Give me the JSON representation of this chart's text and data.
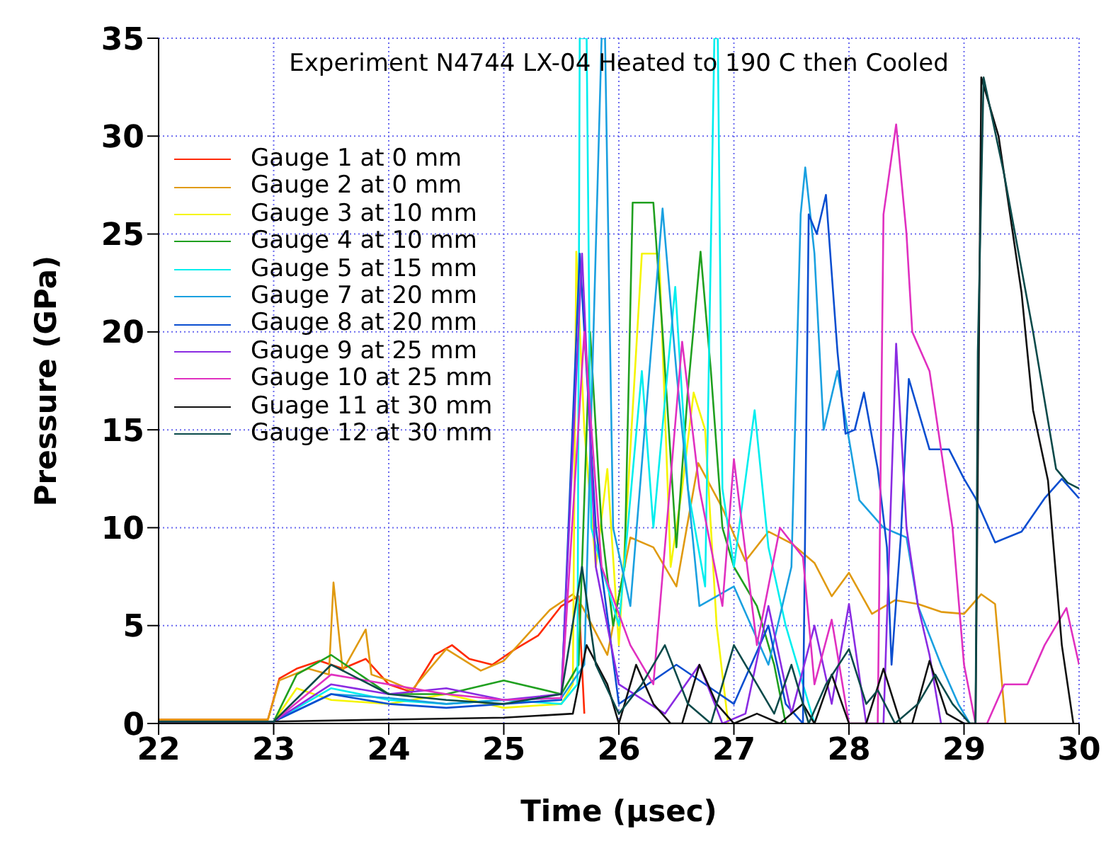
{
  "chart_data": {
    "type": "line",
    "title": "Experiment N4744 LX-04 Heated to 190 C then Cooled",
    "xlabel": "Time (μsec)",
    "ylabel": "Pressure (GPa)",
    "xlim": [
      22,
      30
    ],
    "ylim": [
      0,
      35
    ],
    "xticks": [
      22,
      23,
      24,
      25,
      26,
      27,
      28,
      29,
      30
    ],
    "yticks": [
      0,
      5,
      10,
      15,
      20,
      25,
      30,
      35
    ],
    "grid": true,
    "legend": "top left",
    "marker": "none",
    "line_style": "solid",
    "series": [
      {
        "name": "Gauge 1 at 0 mm",
        "color": "#ff2a00",
        "x": [
          22,
          22.5,
          22.95,
          23.05,
          23.2,
          23.4,
          23.6,
          23.8,
          24.0,
          24.2,
          24.4,
          24.55,
          24.7,
          24.9,
          25.1,
          25.3,
          25.5,
          25.65,
          25.7
        ],
        "values": [
          0.2,
          0.2,
          0.2,
          2.3,
          2.8,
          3.2,
          2.8,
          3.3,
          2.0,
          1.6,
          3.5,
          4,
          3.3,
          3,
          3.8,
          4.5,
          6,
          6.5,
          0.5
        ]
      },
      {
        "name": "Gauge 2 at 0 mm",
        "color": "#e09a10",
        "x": [
          22,
          22.5,
          22.95,
          23.05,
          23.3,
          23.48,
          23.52,
          23.6,
          23.8,
          23.85,
          24.0,
          24.2,
          24.5,
          24.8,
          25.0,
          25.2,
          25.4,
          25.6,
          25.68,
          25.9,
          26.1,
          26.3,
          26.5,
          26.69,
          26.9,
          27.1,
          27.3,
          27.5,
          27.7,
          27.85,
          28.0,
          28.2,
          28.4,
          28.6,
          28.8,
          29.0,
          29.15,
          29.27,
          29.36
        ],
        "values": [
          0.2,
          0.2,
          0.2,
          2.2,
          2.8,
          2.5,
          7.2,
          2.7,
          4.8,
          2.5,
          2.2,
          1.7,
          3.8,
          2.7,
          3.2,
          4.5,
          5.8,
          6.6,
          6,
          3.5,
          9.5,
          9,
          7,
          13.3,
          11,
          8.3,
          9.8,
          9.2,
          8.2,
          6.5,
          7.7,
          5.6,
          6.3,
          6.1,
          5.7,
          5.6,
          6.6,
          6.1,
          0
        ]
      },
      {
        "name": "Gauge 3 at 10 mm",
        "color": "#f5f500",
        "x": [
          22,
          23.0,
          23.2,
          23.5,
          24.0,
          24.5,
          25.0,
          25.5,
          25.6,
          25.63,
          25.7,
          25.8,
          25.9,
          26.0,
          26.2,
          26.35,
          26.45,
          26.55,
          26.65,
          26.75,
          26.85,
          26.95
        ],
        "values": [
          0.1,
          0.1,
          1.8,
          1.2,
          1.0,
          1.5,
          0.8,
          1.0,
          2,
          24.1,
          15,
          8,
          13,
          4,
          24,
          24,
          8,
          12,
          16.9,
          15,
          5,
          0
        ]
      },
      {
        "name": "Gauge 4 at 10 mm",
        "color": "#20a020",
        "x": [
          22,
          23.0,
          23.2,
          23.5,
          24.0,
          24.5,
          25.0,
          25.5,
          25.65,
          25.75,
          25.85,
          25.95,
          26.05,
          26.12,
          26.3,
          26.38,
          26.5,
          26.6,
          26.71,
          26.8,
          26.9,
          27.0,
          27.2,
          27.35,
          27.45
        ],
        "values": [
          0.1,
          0.1,
          2.5,
          3.5,
          1.5,
          1.5,
          2.2,
          1.5,
          3,
          20,
          10,
          5,
          8,
          26.6,
          26.6,
          20,
          9,
          17,
          24.1,
          18,
          10,
          8,
          6,
          3,
          0
        ]
      },
      {
        "name": "Gauge 5 at 15 mm",
        "color": "#00eeee",
        "x": [
          22,
          23.0,
          23.5,
          24.0,
          24.5,
          25.0,
          25.5,
          25.64,
          25.66,
          25.72,
          25.76,
          25.85,
          26.0,
          26.2,
          26.3,
          26.49,
          26.6,
          26.75,
          26.83,
          26.86,
          26.9,
          27.0,
          27.18,
          27.3,
          27.45,
          27.6,
          27.7
        ],
        "values": [
          0.1,
          0.1,
          1.8,
          1.2,
          1.0,
          1.2,
          1.0,
          2,
          35,
          35,
          10,
          8,
          5,
          18,
          10,
          22.3,
          12,
          7,
          35,
          35,
          12,
          8,
          16,
          9,
          5,
          2,
          0
        ]
      },
      {
        "name": "Gauge 7 at 20 mm",
        "color": "#1aa0e0",
        "x": [
          22,
          23.0,
          23.5,
          24.0,
          24.5,
          25.0,
          25.5,
          25.7,
          25.85,
          25.88,
          25.95,
          26.1,
          26.38,
          26.5,
          26.7,
          27.0,
          27.3,
          27.5,
          27.58,
          27.62,
          27.7,
          27.78,
          27.9,
          28.09,
          28.3,
          28.5,
          28.6,
          28.8,
          28.95,
          29.05
        ],
        "values": [
          0.1,
          0.1,
          1.5,
          1.3,
          1.0,
          1.2,
          1.3,
          3,
          35,
          35,
          10,
          6,
          26.3,
          18,
          6,
          7,
          3,
          8,
          26,
          28.4,
          24,
          15,
          18,
          11.4,
          10,
          9.5,
          6,
          3,
          1,
          0
        ]
      },
      {
        "name": "Gauge 8 at 20 mm",
        "color": "#0a4ed0",
        "x": [
          22,
          23.0,
          23.5,
          24.0,
          24.5,
          25.0,
          25.5,
          25.66,
          25.8,
          26.0,
          26.5,
          27.0,
          27.3,
          27.45,
          27.6,
          27.65,
          27.72,
          27.8,
          27.9,
          27.97,
          28.05,
          28.13,
          28.25,
          28.33,
          28.37,
          28.45,
          28.52,
          28.6,
          28.7,
          28.87,
          29.0,
          29.1,
          29.27,
          29.5,
          29.7,
          29.85,
          30.0
        ],
        "values": [
          0.1,
          0.1,
          1.5,
          1.0,
          0.8,
          1.0,
          1.2,
          24,
          10,
          1,
          3,
          1,
          5,
          1,
          0,
          26,
          25,
          27,
          19,
          14.8,
          15,
          16.9,
          13,
          9,
          3,
          9.5,
          17.6,
          16,
          14,
          14,
          12.5,
          11.5,
          9.25,
          9.8,
          11.5,
          12.5,
          11.5
        ]
      },
      {
        "name": "Gauge 9 at 25 mm",
        "color": "#8a2be2",
        "x": [
          22,
          23.0,
          23.5,
          24.0,
          24.5,
          25.0,
          25.5,
          25.68,
          25.8,
          26.0,
          26.4,
          26.7,
          26.9,
          27.1,
          27.3,
          27.5,
          27.7,
          27.85,
          28.0,
          28.15,
          28.3,
          28.41,
          28.5,
          28.6,
          28.7,
          28.8
        ],
        "values": [
          0.1,
          0.1,
          2,
          1.5,
          1.8,
          1.2,
          1.5,
          24,
          8,
          2,
          0.5,
          3,
          0,
          0.5,
          6,
          0.5,
          5,
          1,
          6.1,
          0,
          0,
          19.4,
          10,
          6,
          3.5,
          0
        ]
      },
      {
        "name": "Gauge 10 at 25 mm",
        "color": "#e030c0",
        "x": [
          22,
          23.0,
          23.5,
          24.0,
          24.5,
          25.0,
          25.5,
          25.7,
          25.85,
          26.1,
          26.3,
          26.55,
          26.7,
          26.9,
          27.0,
          27.2,
          27.4,
          27.6,
          27.7,
          27.85,
          28.0,
          28.25,
          28.3,
          28.41,
          28.5,
          28.55,
          28.7,
          28.9,
          29.0,
          29.1,
          29.2,
          29.35,
          29.55,
          29.7,
          29.89,
          30.0
        ],
        "values": [
          0.1,
          0.1,
          2.5,
          2,
          1.5,
          1.2,
          1.3,
          20,
          8,
          4,
          2,
          19.5,
          12,
          6,
          13.5,
          4,
          10,
          8.5,
          2,
          5.3,
          0,
          0,
          26,
          30.6,
          25,
          20,
          18,
          10,
          3,
          0,
          0,
          2,
          2,
          4,
          5.9,
          3
        ]
      },
      {
        "name": "Guage 11 at 30 mm",
        "color": "#111111",
        "x": [
          22,
          23.0,
          24.0,
          25.0,
          25.6,
          25.72,
          25.9,
          26.0,
          26.15,
          26.3,
          26.45,
          26.55,
          26.7,
          26.85,
          27.0,
          27.2,
          27.4,
          27.5,
          27.6,
          27.7,
          27.85,
          28.0,
          28.15,
          28.3,
          28.45,
          28.55,
          28.7,
          28.85,
          29.0,
          29.1,
          29.15,
          29.3,
          29.5,
          29.6,
          29.73,
          29.85,
          29.95
        ],
        "values": [
          0.1,
          0.1,
          0.2,
          0.3,
          0.5,
          4,
          2,
          0,
          3,
          1,
          0,
          0,
          3,
          1,
          0,
          0.5,
          0,
          0.5,
          1,
          0,
          2.5,
          0,
          0,
          2.8,
          0,
          0,
          3.2,
          0.5,
          0,
          0,
          33,
          30,
          22,
          16,
          12.4,
          4,
          0
        ]
      },
      {
        "name": "Gauge 12 at 30 mm",
        "color": "#0b4a4a",
        "x": [
          22,
          23.0,
          23.5,
          24.0,
          24.5,
          25.0,
          25.5,
          25.68,
          25.8,
          26.0,
          26.2,
          26.4,
          26.6,
          26.8,
          27.0,
          27.2,
          27.35,
          27.5,
          27.65,
          27.8,
          28.0,
          28.15,
          28.25,
          28.4,
          28.6,
          28.75,
          28.9,
          29.05,
          29.1,
          29.12,
          29.17,
          29.35,
          29.6,
          29.8,
          29.9,
          30.0
        ],
        "values": [
          0.1,
          0.1,
          3,
          1.5,
          1.2,
          1,
          1.5,
          8,
          3,
          0.5,
          2,
          4,
          1,
          0,
          4,
          2,
          0.5,
          3,
          0,
          2,
          3.8,
          1,
          1.7,
          0,
          1,
          2.5,
          1,
          0,
          0,
          19,
          33,
          28,
          20,
          13,
          12.3,
          12
        ]
      }
    ]
  }
}
